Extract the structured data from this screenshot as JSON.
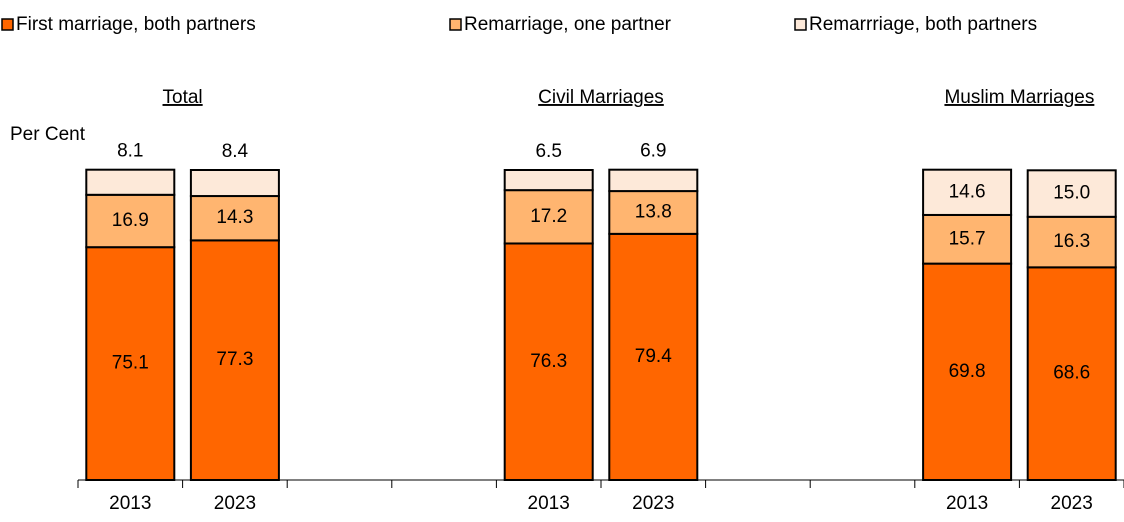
{
  "chart_data": {
    "type": "stacked_bar",
    "y_label": "Per Cent",
    "annotations": [
      "Total",
      "Civil Marriages",
      "Muslim Marriages"
    ],
    "categories": [
      "2013",
      "2023",
      null,
      null,
      "2013",
      "2023",
      null,
      null,
      "2013",
      "2023"
    ],
    "series": [
      {
        "name": "First marriage, both partners",
        "color": "#ff6600",
        "values": [
          75.1,
          77.3,
          null,
          null,
          76.3,
          79.4,
          null,
          null,
          69.8,
          68.6
        ],
        "value_labels": [
          "75.1",
          "77.3",
          null,
          null,
          "76.3",
          "79.4",
          null,
          null,
          "69.8",
          "68.6"
        ]
      },
      {
        "name": "Remarriage, one partner",
        "color": "#ffb570",
        "values": [
          16.9,
          14.3,
          null,
          null,
          17.2,
          13.8,
          null,
          null,
          15.7,
          16.3
        ],
        "value_labels": [
          "16.9",
          "14.3",
          null,
          null,
          "17.2",
          "13.8",
          null,
          null,
          "15.7",
          "16.3"
        ]
      },
      {
        "name": "Remarrriage, both partners",
        "color": "#fde9d9",
        "values": [
          8.1,
          8.4,
          null,
          null,
          6.5,
          6.9,
          null,
          null,
          14.6,
          15.0
        ],
        "value_labels": [
          "8.1",
          "8.4",
          null,
          null,
          "6.5",
          "6.9",
          null,
          null,
          "14.6",
          "15.0"
        ]
      }
    ],
    "ylim": [
      0,
      100
    ],
    "legend": "top"
  }
}
